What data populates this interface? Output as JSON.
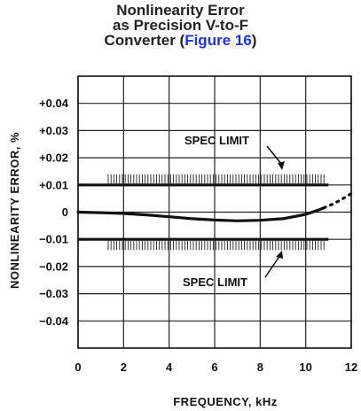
{
  "title": {
    "line1": "Nonlinearity Error",
    "line2": "as Precision V-to-F",
    "line3_prefix": "Converter (",
    "line3_link": "Figure 16",
    "line3_suffix": ")",
    "link_color": "#1a32e6"
  },
  "chart_data": {
    "type": "line",
    "title": "Nonlinearity Error as Precision V-to-F Converter (Figure 16)",
    "xlabel": "FREQUENCY, kHz",
    "ylabel": "NONLINEARITY ERROR, %",
    "xlim": [
      0,
      12
    ],
    "ylim": [
      -0.05,
      0.05
    ],
    "x_ticks": [
      0,
      2,
      4,
      6,
      8,
      10,
      12
    ],
    "x_tick_labels": [
      "0",
      "2",
      "4",
      "6",
      "8",
      "10",
      "12"
    ],
    "y_ticks": [
      0.04,
      0.03,
      0.02,
      0.01,
      0,
      -0.01,
      -0.02,
      -0.03,
      -0.04
    ],
    "y_tick_labels": [
      "+0.04",
      "+0.03",
      "+0.02",
      "+0.01",
      "0",
      "−0.01",
      "−0.02",
      "−0.03",
      "−0.04"
    ],
    "grid": true,
    "series": [
      {
        "x": [
          0,
          1,
          2,
          3,
          4,
          5,
          6,
          7,
          8,
          9,
          10,
          10.5,
          10.8
        ],
        "values": [
          0,
          -0.0002,
          -0.0005,
          -0.001,
          -0.0017,
          -0.0024,
          -0.0029,
          -0.0032,
          -0.003,
          -0.0024,
          -0.0008,
          0.0006,
          0.0016
        ],
        "style": "solid"
      },
      {
        "x": [
          10.8,
          11.2,
          11.6,
          12
        ],
        "values": [
          0.0016,
          0.003,
          0.0048,
          0.0068
        ],
        "style": "dotted"
      }
    ],
    "spec_limits": {
      "upper": 0.01,
      "lower": -0.01,
      "x_range": [
        0,
        11
      ],
      "label": "SPEC LIMIT"
    }
  }
}
